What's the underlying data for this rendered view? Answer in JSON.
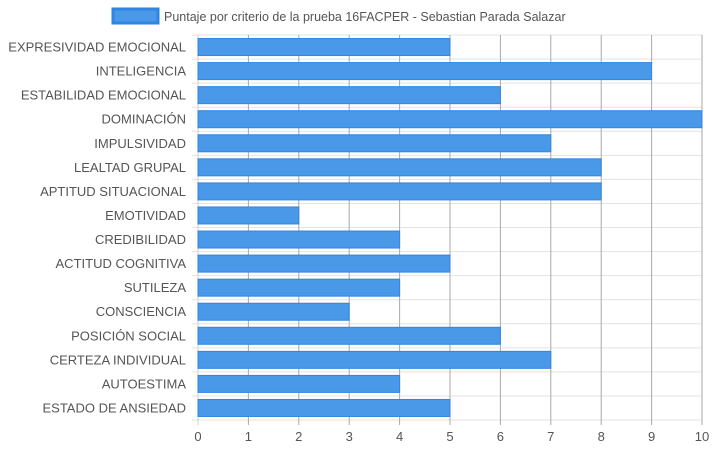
{
  "chart_data": {
    "type": "bar",
    "orientation": "horizontal",
    "categories": [
      "EXPRESIVIDAD EMOCIONAL",
      "INTELIGENCIA",
      "ESTABILIDAD EMOCIONAL",
      "DOMINACIÓN",
      "IMPULSIVIDAD",
      "LEALTAD GRUPAL",
      "APTITUD SITUACIONAL",
      "EMOTIVIDAD",
      "CREDIBILIDAD",
      "ACTITUD COGNITIVA",
      "SUTILEZA",
      "CONSCIENCIA",
      "POSICIÓN SOCIAL",
      "CERTEZA INDIVIDUAL",
      "AUTOESTIMA",
      "ESTADO DE ANSIEDAD"
    ],
    "series": [
      {
        "name": "Puntaje por criterio de la prueba 16FACPER - Sebastian Parada Salazar",
        "values": [
          5,
          9,
          6,
          10,
          7,
          8,
          8,
          2,
          4,
          5,
          4,
          3,
          6,
          7,
          4,
          5
        ],
        "color": "#4a98e8",
        "border_color": "#2f86e2"
      }
    ],
    "x_ticks": [
      "0",
      "1",
      "2",
      "3",
      "4",
      "5",
      "6",
      "7",
      "8",
      "9",
      "10"
    ],
    "xlim": [
      0,
      10
    ],
    "grid": true,
    "legend_position": "top-center"
  }
}
